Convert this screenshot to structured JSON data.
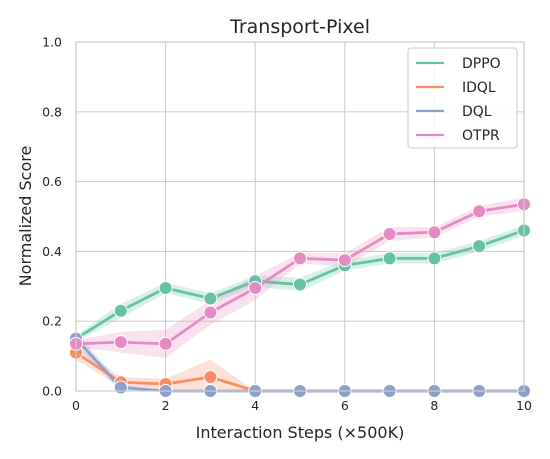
{
  "chart_data": {
    "type": "line",
    "title": "Transport-Pixel",
    "xlabel": "Interaction Steps (×500K)",
    "ylabel": "Normalized Score",
    "xlim": [
      0,
      10
    ],
    "ylim": [
      0,
      1.0
    ],
    "xticks": [
      "0",
      "2",
      "4",
      "6",
      "8",
      "10"
    ],
    "yticks": [
      "0.0",
      "0.2",
      "0.4",
      "0.6",
      "0.8",
      "1.0"
    ],
    "grid": true,
    "legend_position": "top-right",
    "series": [
      {
        "name": "DPPO",
        "color": "#66c2a5",
        "x": [
          0,
          1,
          2,
          3,
          4,
          5,
          6,
          7,
          8,
          9,
          10
        ],
        "values": [
          0.15,
          0.23,
          0.295,
          0.265,
          0.315,
          0.305,
          0.36,
          0.38,
          0.38,
          0.415,
          0.46
        ],
        "lower": [
          0.14,
          0.21,
          0.28,
          0.25,
          0.3,
          0.285,
          0.345,
          0.365,
          0.365,
          0.4,
          0.445
        ],
        "upper": [
          0.16,
          0.25,
          0.31,
          0.28,
          0.33,
          0.325,
          0.375,
          0.395,
          0.395,
          0.43,
          0.475
        ]
      },
      {
        "name": "IDQL",
        "color": "#fc8d62",
        "x": [
          0,
          1,
          2,
          3,
          4,
          5,
          6,
          7,
          8,
          9,
          10
        ],
        "values": [
          0.11,
          0.025,
          0.02,
          0.04,
          0.0,
          0.0,
          0.0,
          0.0,
          0.0,
          0.0,
          0.0
        ],
        "lower": [
          0.09,
          0.01,
          0.005,
          0.0,
          0.0,
          0.0,
          0.0,
          0.0,
          0.0,
          0.0,
          0.0
        ],
        "upper": [
          0.13,
          0.04,
          0.035,
          0.09,
          0.0,
          0.0,
          0.0,
          0.0,
          0.0,
          0.0,
          0.0
        ]
      },
      {
        "name": "DQL",
        "color": "#8da0cb",
        "x": [
          0,
          1,
          2,
          3,
          4,
          5,
          6,
          7,
          8,
          9,
          10
        ],
        "values": [
          0.15,
          0.01,
          0.0,
          0.0,
          0.0,
          0.0,
          0.0,
          0.0,
          0.0,
          0.0,
          0.0
        ],
        "lower": [
          0.13,
          0.0,
          0.0,
          0.0,
          0.0,
          0.0,
          0.0,
          0.0,
          0.0,
          0.0,
          0.0
        ],
        "upper": [
          0.17,
          0.02,
          0.0,
          0.0,
          0.0,
          0.0,
          0.0,
          0.0,
          0.0,
          0.0,
          0.0
        ]
      },
      {
        "name": "OTPR",
        "color": "#e78ac3",
        "x": [
          0,
          1,
          2,
          3,
          4,
          5,
          6,
          7,
          8,
          9,
          10
        ],
        "values": [
          0.135,
          0.14,
          0.135,
          0.225,
          0.295,
          0.38,
          0.375,
          0.45,
          0.455,
          0.515,
          0.535
        ],
        "lower": [
          0.125,
          0.11,
          0.095,
          0.19,
          0.26,
          0.365,
          0.355,
          0.43,
          0.44,
          0.5,
          0.515
        ],
        "upper": [
          0.145,
          0.17,
          0.175,
          0.26,
          0.33,
          0.395,
          0.395,
          0.47,
          0.47,
          0.53,
          0.555
        ]
      }
    ]
  }
}
